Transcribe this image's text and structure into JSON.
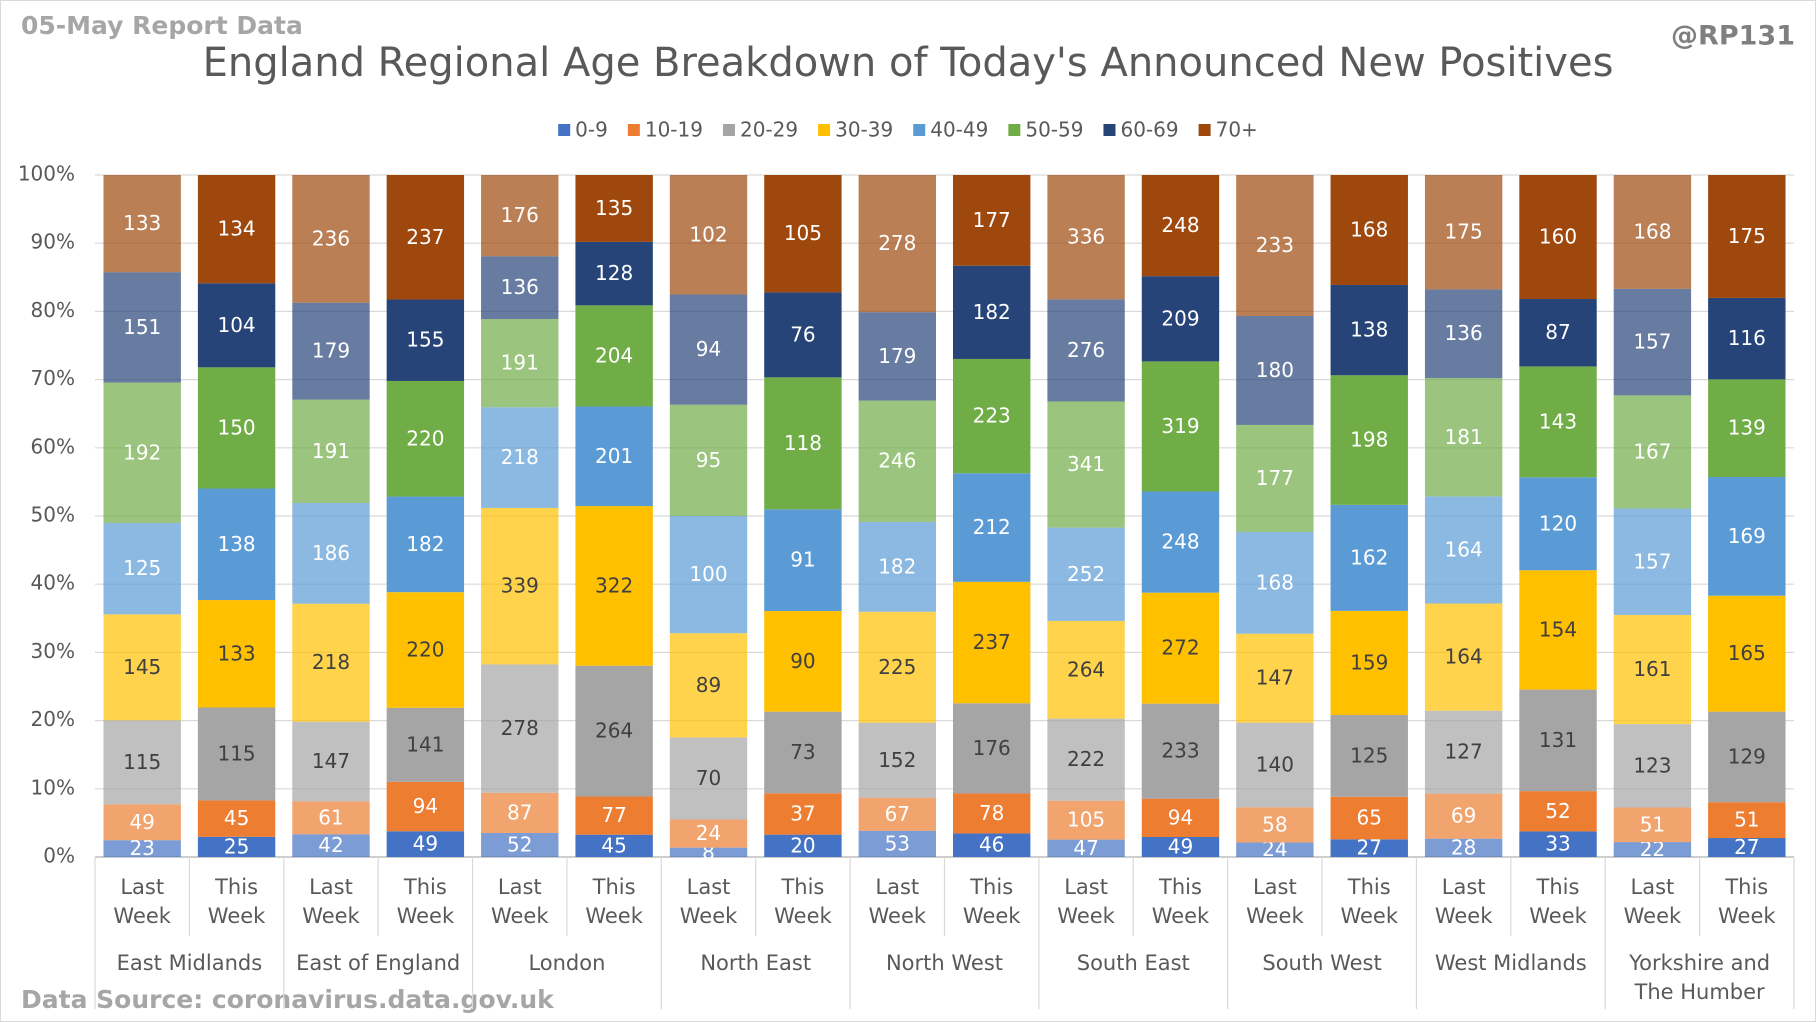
{
  "chart_data": {
    "type": "stacked_bar_100",
    "title": "England Regional Age Breakdown of Today's Announced New Positives",
    "report_label": "05-May Report Data",
    "credit": "@RP131",
    "source": "Data Source: coronavirus.data.gov.uk",
    "groups": [
      "East Midlands",
      "East of England",
      "London",
      "North East",
      "North West",
      "South East",
      "South West",
      "West Midlands",
      "Yorkshire and The Humber"
    ],
    "categories": [
      "Last Week",
      "This Week",
      "Last Week",
      "This Week",
      "Last Week",
      "This Week",
      "Last Week",
      "This Week",
      "Last Week",
      "This Week",
      "Last Week",
      "This Week",
      "Last Week",
      "This Week",
      "Last Week",
      "This Week",
      "Last Week",
      "This Week"
    ],
    "ylim": [
      0,
      100
    ],
    "yticks": [
      {
        "value": 0,
        "label": "0%"
      },
      {
        "value": 10,
        "label": "10%"
      },
      {
        "value": 20,
        "label": "20%"
      },
      {
        "value": 30,
        "label": "30%"
      },
      {
        "value": 40,
        "label": "40%"
      },
      {
        "value": 50,
        "label": "50%"
      },
      {
        "value": 60,
        "label": "60%"
      },
      {
        "value": 70,
        "label": "70%"
      },
      {
        "value": 80,
        "label": "80%"
      },
      {
        "value": 90,
        "label": "90%"
      },
      {
        "value": 100,
        "label": "100%"
      }
    ],
    "grid": true,
    "legend": "top",
    "series": [
      {
        "name": "0-9",
        "color": "#4472c4",
        "values": [
          23,
          25,
          42,
          49,
          52,
          45,
          8,
          20,
          53,
          46,
          47,
          49,
          24,
          27,
          28,
          33,
          22,
          27
        ]
      },
      {
        "name": "10-19",
        "color": "#ed7d31",
        "values": [
          49,
          45,
          61,
          94,
          87,
          77,
          24,
          37,
          67,
          78,
          105,
          94,
          58,
          65,
          69,
          52,
          51,
          51
        ]
      },
      {
        "name": "20-29",
        "color": "#a5a5a5",
        "values": [
          115,
          115,
          147,
          141,
          278,
          264,
          70,
          73,
          152,
          176,
          222,
          233,
          140,
          125,
          127,
          131,
          123,
          129
        ]
      },
      {
        "name": "30-39",
        "color": "#ffc000",
        "values": [
          145,
          133,
          218,
          220,
          339,
          322,
          89,
          90,
          225,
          237,
          264,
          272,
          147,
          159,
          164,
          154,
          161,
          165
        ]
      },
      {
        "name": "40-49",
        "color": "#5b9bd5",
        "values": [
          125,
          138,
          186,
          182,
          218,
          201,
          100,
          91,
          182,
          212,
          252,
          248,
          168,
          162,
          164,
          120,
          157,
          169
        ]
      },
      {
        "name": "50-59",
        "color": "#70ad47",
        "values": [
          192,
          150,
          191,
          220,
          191,
          204,
          95,
          118,
          246,
          223,
          341,
          319,
          177,
          198,
          181,
          143,
          167,
          139
        ]
      },
      {
        "name": "60-69",
        "color": "#264478",
        "values": [
          151,
          104,
          179,
          155,
          136,
          128,
          94,
          76,
          179,
          182,
          276,
          209,
          180,
          138,
          136,
          87,
          157,
          116
        ]
      },
      {
        "name": "70+",
        "color": "#9e480e",
        "values": [
          133,
          134,
          236,
          237,
          176,
          135,
          102,
          105,
          278,
          177,
          336,
          248,
          233,
          168,
          175,
          160,
          168,
          175
        ]
      }
    ]
  }
}
